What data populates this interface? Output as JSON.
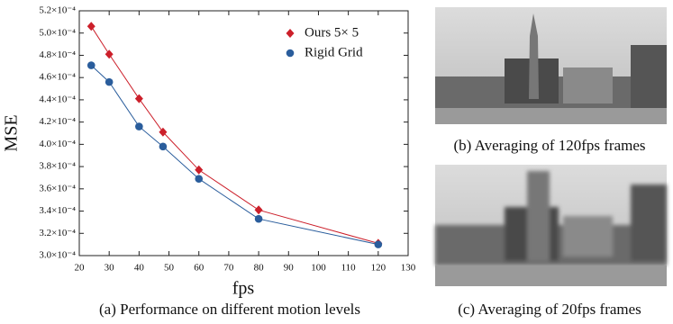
{
  "chart_data": {
    "type": "line",
    "xlabel": "fps",
    "ylabel": "MSE",
    "caption": "(a) Performance on different motion levels",
    "x": [
      24,
      30,
      40,
      48,
      60,
      80,
      120
    ],
    "series": [
      {
        "name": "Ours 5× 5",
        "color": "#cc1f2a",
        "marker": "diamond",
        "values": [
          0.000506,
          0.000481,
          0.000441,
          0.000411,
          0.000377,
          0.000341,
          0.000311
        ]
      },
      {
        "name": "Rigid Grid",
        "color": "#2a5d9c",
        "marker": "circle",
        "values": [
          0.000471,
          0.000456,
          0.000416,
          0.000398,
          0.000369,
          0.000333,
          0.00031
        ]
      }
    ],
    "xlim": [
      20,
      130
    ],
    "xticks": [
      20,
      30,
      40,
      50,
      60,
      70,
      80,
      90,
      100,
      110,
      120,
      130
    ],
    "ylim": [
      0.0003,
      0.00052
    ],
    "yticks": [
      {
        "value": 0.0003,
        "label": "3.0×10⁻⁴"
      },
      {
        "value": 0.00032,
        "label": "3.2×10⁻⁴"
      },
      {
        "value": 0.00034,
        "label": "3.4×10⁻⁴"
      },
      {
        "value": 0.00036,
        "label": "3.6×10⁻⁴"
      },
      {
        "value": 0.00038,
        "label": "3.8×10⁻⁴"
      },
      {
        "value": 0.0004,
        "label": "4.0×10⁻⁴"
      },
      {
        "value": 0.00042,
        "label": "4.2×10⁻⁴"
      },
      {
        "value": 0.00044,
        "label": "4.4×10⁻⁴"
      },
      {
        "value": 0.00046,
        "label": "4.6×10⁻⁴"
      },
      {
        "value": 0.00048,
        "label": "4.8×10⁻⁴"
      },
      {
        "value": 0.0005,
        "label": "5.0×10⁻⁴"
      },
      {
        "value": 0.00052,
        "label": "5.2×10⁻⁴"
      }
    ],
    "grid": false,
    "legend": "upper right"
  },
  "images": [
    {
      "caption": "(b) Averaging of 120fps frames"
    },
    {
      "caption": "(c) Averaging of 20fps frames"
    }
  ]
}
